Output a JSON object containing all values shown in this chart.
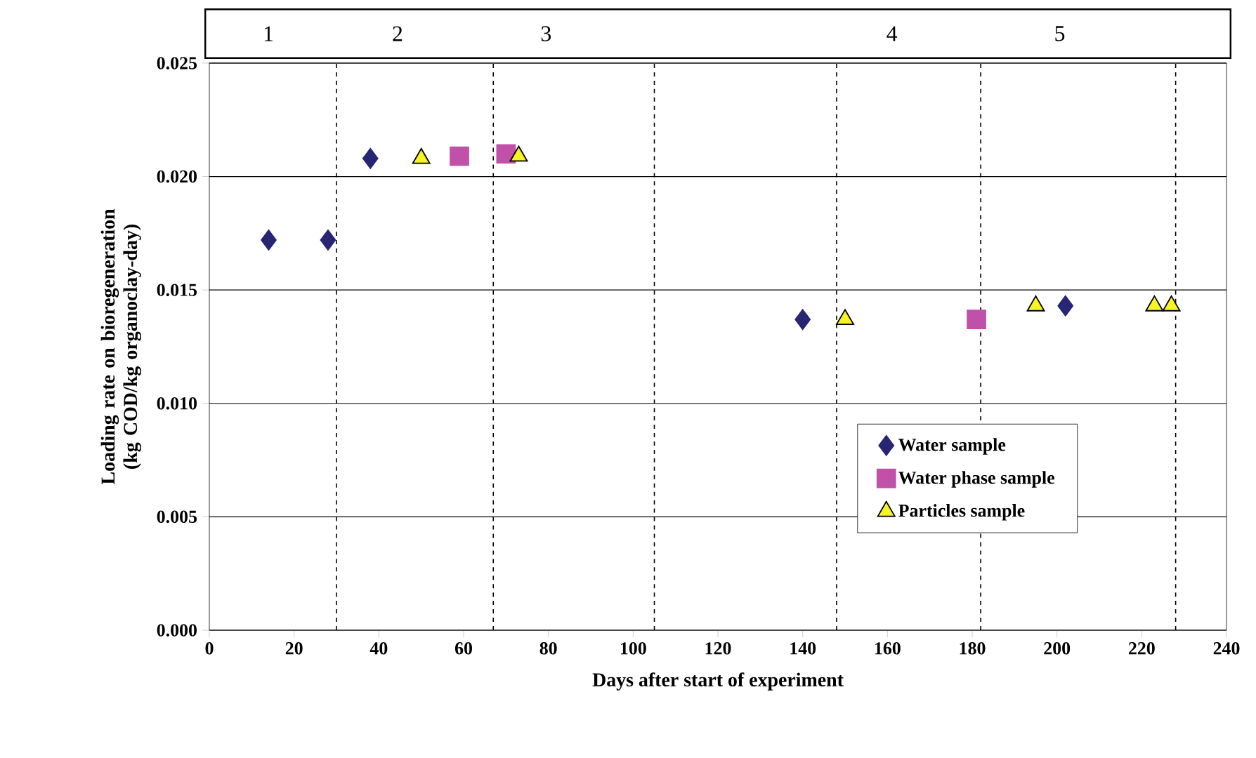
{
  "chart_data": {
    "type": "scatter",
    "xlabel": "Days after start of experiment",
    "ylabel": "Loading rate on bioregeneration (kg COD/kg organoclay-day)",
    "xlim": [
      0,
      240
    ],
    "xticks": [
      0,
      20,
      40,
      60,
      80,
      100,
      120,
      140,
      160,
      180,
      200,
      220,
      240
    ],
    "ylim": [
      0,
      0.025
    ],
    "yticks": [
      {
        "value": 0,
        "label": "0.000"
      },
      {
        "value": 0.005,
        "label": "0.005"
      },
      {
        "value": 0.01,
        "label": "0.010"
      },
      {
        "value": 0.015,
        "label": "0.015"
      },
      {
        "value": 0.02,
        "label": "0.020"
      },
      {
        "value": 0.025,
        "label": "0.025"
      }
    ],
    "grid": "y",
    "legend": "bottom right",
    "series": [
      {
        "name": "Water sample",
        "color": "#262673",
        "marker": "diamond",
        "x": [
          14,
          28,
          38,
          140,
          202
        ],
        "values": [
          0.0172,
          0.0172,
          0.0208,
          0.0137,
          0.0143
        ]
      },
      {
        "name": "Water phase sample",
        "color": "#c050a8",
        "marker": "square",
        "x": [
          59,
          70,
          181
        ],
        "values": [
          0.0209,
          0.021,
          0.0137
        ]
      },
      {
        "name": "Particles sample",
        "color": "#f5f522",
        "marker": "triangle",
        "x": [
          50,
          73,
          150,
          195,
          223,
          227
        ],
        "values": [
          0.0208,
          0.0209,
          0.0137,
          0.0143,
          0.0143,
          0.0143
        ]
      }
    ],
    "ref_lines": [
      {
        "axis": "x",
        "value": 30,
        "color": "#000000",
        "line_style": "dashed"
      },
      {
        "axis": "x",
        "value": 67,
        "color": "#000000",
        "line_style": "dashed"
      },
      {
        "axis": "x",
        "value": 105,
        "color": "#000000",
        "line_style": "dashed"
      },
      {
        "axis": "x",
        "value": 148,
        "color": "#000000",
        "line_style": "dashed"
      },
      {
        "axis": "x",
        "value": 182,
        "color": "#000000",
        "line_style": "dashed"
      },
      {
        "axis": "x",
        "value": 228,
        "color": "#000000",
        "line_style": "dashed"
      }
    ],
    "annotations": [
      "1",
      "2",
      "3",
      "4",
      "5"
    ]
  }
}
